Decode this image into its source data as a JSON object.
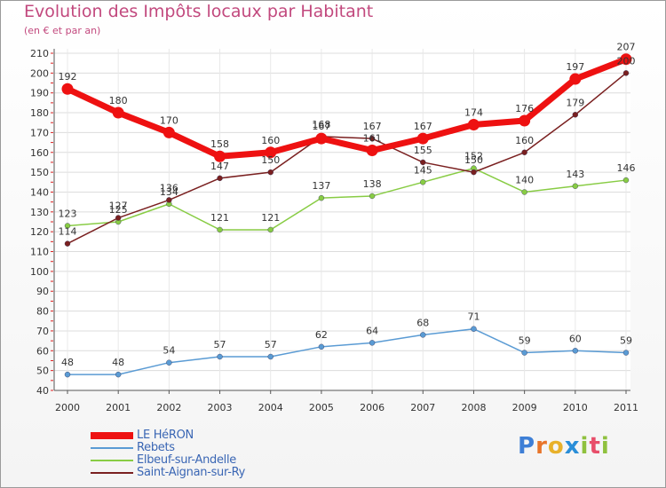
{
  "title": "Evolution des Impôts locaux par Habitant",
  "subtitle": "(en € et par an)",
  "logo": {
    "letters": [
      "P",
      "r",
      "o",
      "x",
      "i",
      "t",
      "i"
    ],
    "colors": [
      "#3e7fd6",
      "#e8752a",
      "#e8b12a",
      "#2a8ed8",
      "#8fc13e",
      "#e84e6a",
      "#8fc13e"
    ]
  },
  "chart_data": {
    "type": "line",
    "x": [
      "2000",
      "2001",
      "2002",
      "2003",
      "2004",
      "2005",
      "2006",
      "2007",
      "2008",
      "2009",
      "2010",
      "2011"
    ],
    "ylim": [
      40,
      210
    ],
    "yticks": [
      40,
      50,
      60,
      70,
      80,
      90,
      100,
      110,
      120,
      130,
      140,
      150,
      160,
      170,
      180,
      190,
      200,
      210
    ],
    "grid": true,
    "legend_position": "bottom-left",
    "series": [
      {
        "name": "LE HéRON",
        "color": "#ee1111",
        "values": [
          192,
          180,
          170,
          158,
          160,
          167,
          161,
          167,
          174,
          176,
          197,
          207
        ],
        "labels": [
          "192",
          "180",
          "170",
          "158",
          "160",
          "167",
          "161",
          "167",
          "174",
          "176",
          "197",
          "207"
        ]
      },
      {
        "name": "Rebets",
        "color": "#5a9bd4",
        "values": [
          48,
          48,
          54,
          57,
          57,
          62,
          64,
          68,
          71,
          59,
          60,
          59
        ],
        "labels": [
          "48",
          "48",
          "54",
          "57",
          "57",
          "62",
          "64",
          "68",
          "71",
          "59",
          "60",
          "59"
        ]
      },
      {
        "name": "Elbeuf-sur-Andelle",
        "color": "#88cc44",
        "values": [
          123,
          125,
          134,
          121,
          121,
          137,
          138,
          145,
          152,
          140,
          143,
          146
        ],
        "labels": [
          "123",
          "125",
          "134",
          "121",
          "121",
          "137",
          "138",
          "145",
          "152",
          "140",
          "143",
          "146"
        ]
      },
      {
        "name": "Saint-Aignan-sur-Ry",
        "color": "#7a2020",
        "values": [
          114,
          127,
          136,
          147,
          150,
          168,
          167,
          155,
          150,
          160,
          179,
          200
        ],
        "labels": [
          "114",
          "127",
          "136",
          "147",
          "150",
          "168",
          "167",
          "155",
          "150",
          "160",
          "179",
          "200"
        ]
      }
    ]
  }
}
